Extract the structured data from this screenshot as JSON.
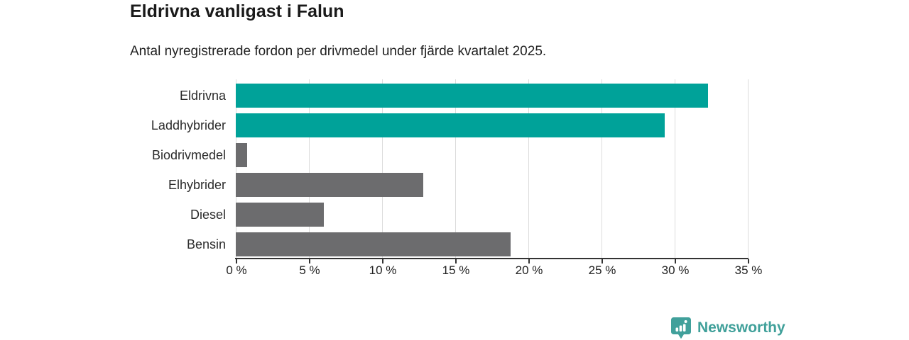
{
  "title": "Eldrivna vanligast i Falun",
  "subtitle": "Antal nyregistrerade fordon per drivmedel under fjärde kvartalet 2025.",
  "colors": {
    "accent_teal": "#00a299",
    "neutral_gray": "#6c6c6e",
    "gridline": "#dcdcdc",
    "axis": "#333333",
    "title_text": "#1a1a1a",
    "logo_teal": "#41a09b"
  },
  "chart_data": {
    "type": "bar",
    "orientation": "horizontal",
    "title": "Eldrivna vanligast i Falun",
    "subtitle": "Antal nyregistrerade fordon per drivmedel under fjärde kvartalet 2025.",
    "categories": [
      "Eldrivna",
      "Laddhybrider",
      "Biodrivmedel",
      "Elhybrider",
      "Diesel",
      "Bensin"
    ],
    "values": [
      32.3,
      29.3,
      0.8,
      12.8,
      6.0,
      18.8
    ],
    "unit": "%",
    "bar_colors": [
      "#00a299",
      "#00a299",
      "#6c6c6e",
      "#6c6c6e",
      "#6c6c6e",
      "#6c6c6e"
    ],
    "xlim": [
      0,
      35
    ],
    "x_ticks": [
      0,
      5,
      10,
      15,
      20,
      25,
      30,
      35
    ],
    "x_tick_labels": [
      "0 %",
      "5 %",
      "10 %",
      "15 %",
      "20 %",
      "25 %",
      "30 %",
      "35 %"
    ],
    "grid": "vertical",
    "legend": "none"
  },
  "footer": {
    "brand": "Newsworthy",
    "logo_icon": "bar-chart-pin-icon"
  }
}
